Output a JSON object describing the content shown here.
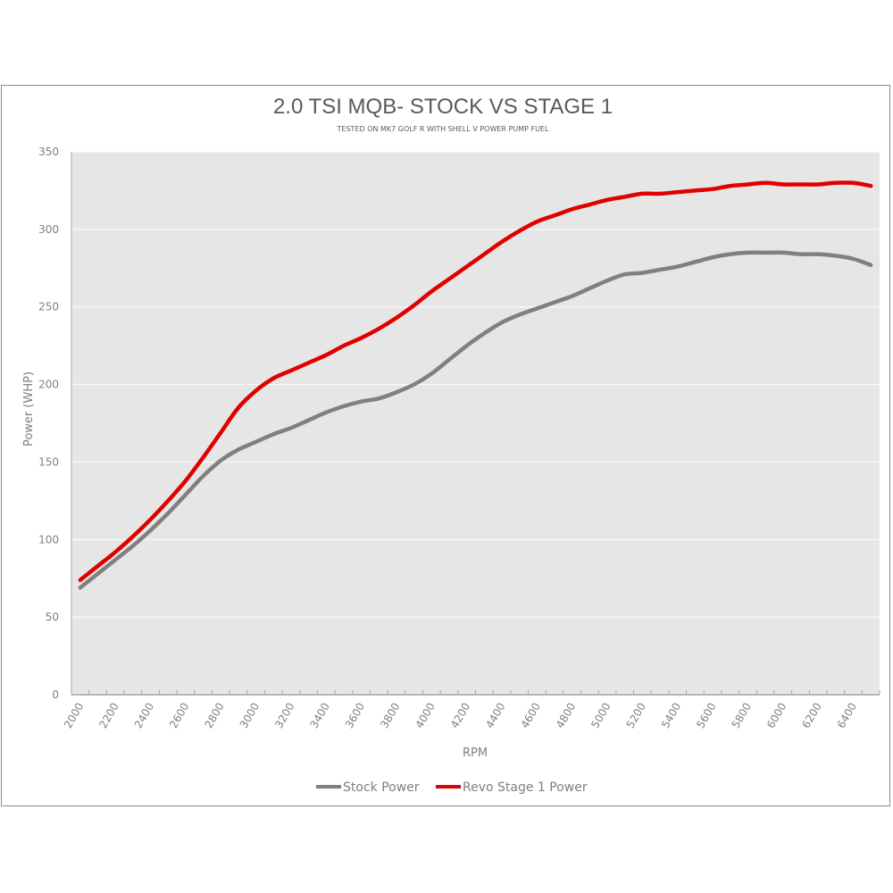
{
  "chart_data": {
    "type": "line",
    "title": "2.0 TSI MQB- STOCK VS STAGE 1",
    "subtitle": "TESTED ON MK7 GOLF R WITH SHELL V POWER PUMP FUEL",
    "xlabel": "RPM",
    "ylabel": "Power (WHP)",
    "ylim": [
      0,
      350
    ],
    "yticks": [
      0,
      50,
      100,
      150,
      200,
      250,
      300,
      350
    ],
    "x": [
      2000,
      2100,
      2200,
      2300,
      2400,
      2500,
      2600,
      2700,
      2800,
      2900,
      3000,
      3100,
      3200,
      3300,
      3400,
      3500,
      3600,
      3700,
      3800,
      3900,
      4000,
      4100,
      4200,
      4300,
      4400,
      4500,
      4600,
      4700,
      4800,
      4900,
      5000,
      5100,
      5200,
      5300,
      5400,
      5500,
      5600,
      5700,
      5800,
      5900,
      6000,
      6100,
      6200,
      6300,
      6400,
      6500
    ],
    "xtick_labels": [
      "2000",
      "2200",
      "2400",
      "2600",
      "2800",
      "3000",
      "3200",
      "3400",
      "3600",
      "3800",
      "4000",
      "4200",
      "4400",
      "4600",
      "4800",
      "5000",
      "5200",
      "5400",
      "5600",
      "5800",
      "6000",
      "6200",
      "6400"
    ],
    "grid": true,
    "legend_position": "bottom",
    "series": [
      {
        "name": "Stock Power",
        "color": "#808080",
        "values": [
          69,
          78,
          87,
          96,
          106,
          117,
          129,
          141,
          151,
          158,
          163,
          168,
          172,
          177,
          182,
          186,
          189,
          191,
          195,
          200,
          207,
          216,
          225,
          233,
          240,
          245,
          249,
          253,
          257,
          262,
          267,
          271,
          272,
          274,
          276,
          279,
          282,
          284,
          285,
          285,
          285,
          284,
          284,
          283,
          281,
          277
        ]
      },
      {
        "name": "Revo Stage 1 Power",
        "color": "#e00000",
        "values": [
          74,
          83,
          92,
          102,
          113,
          125,
          138,
          153,
          169,
          185,
          196,
          204,
          209,
          214,
          219,
          225,
          230,
          236,
          243,
          251,
          260,
          268,
          276,
          284,
          292,
          299,
          305,
          309,
          313,
          316,
          319,
          321,
          323,
          323,
          324,
          325,
          326,
          328,
          329,
          330,
          329,
          329,
          329,
          330,
          330,
          328
        ]
      }
    ],
    "plot_background": "#e6e6e6"
  }
}
